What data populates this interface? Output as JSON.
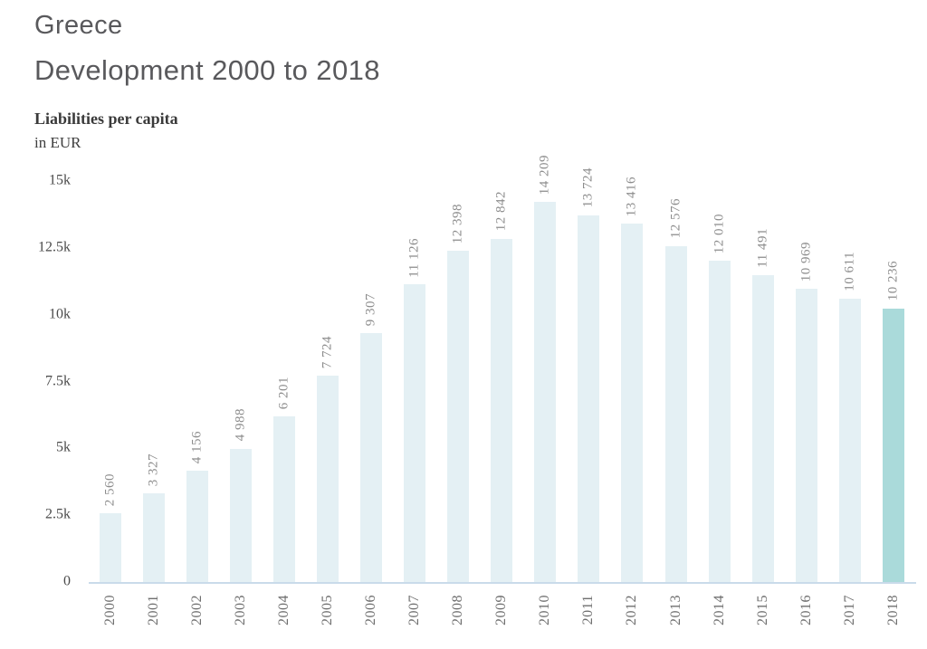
{
  "header": {
    "title": "Greece",
    "subtitle": "Development 2000 to 2018",
    "metric": "Liabilities per capita",
    "unit": "in EUR"
  },
  "chart_data": {
    "type": "bar",
    "title": "Greece — Development 2000 to 2018",
    "subtitle": "Liabilities per capita in EUR",
    "xlabel": "",
    "ylabel": "Liabilities per capita",
    "unit": "EUR",
    "categories": [
      "2000",
      "2001",
      "2002",
      "2003",
      "2004",
      "2005",
      "2006",
      "2007",
      "2008",
      "2009",
      "2010",
      "2011",
      "2012",
      "2013",
      "2014",
      "2015",
      "2016",
      "2017",
      "2018"
    ],
    "values": [
      2560,
      3327,
      4156,
      4988,
      6201,
      7724,
      9307,
      11126,
      12398,
      12842,
      14209,
      13724,
      13416,
      12576,
      12010,
      11491,
      10969,
      10611,
      10236
    ],
    "value_labels": [
      "2 560",
      "3 327",
      "4 156",
      "4 988",
      "6 201",
      "7 724",
      "9 307",
      "11 126",
      "12 398",
      "12 842",
      "14 209",
      "13 724",
      "13 416",
      "12 576",
      "12 010",
      "11 491",
      "10 969",
      "10 611",
      "10 236"
    ],
    "ylim": [
      0,
      15000
    ],
    "yticks": [
      0,
      2500,
      5000,
      7500,
      10000,
      12500,
      15000
    ],
    "ytick_labels": [
      "0",
      "2.5k",
      "5k",
      "7.5k",
      "10k",
      "12.5k",
      "15k"
    ],
    "grid": false,
    "legend": false,
    "bar_color": "#e4f0f4",
    "highlight_color": "#aadada",
    "highlight_index": 18,
    "baseline_color": "#c9dbea",
    "label_rotation_deg": -90
  }
}
